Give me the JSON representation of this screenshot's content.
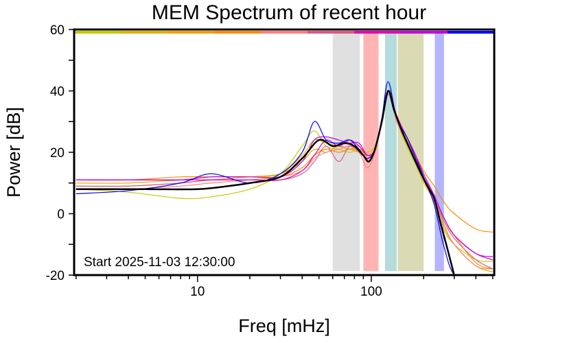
{
  "chart_data": {
    "type": "line",
    "title": "MEM Spectrum of recent hour",
    "xlabel": "Freq [mHz]",
    "ylabel": "Power [dB]",
    "x_scale": "log",
    "xlim": [
      1.95,
      510
    ],
    "ylim": [
      -20,
      60
    ],
    "x_ticks": [
      10,
      100
    ],
    "y_ticks": [
      -20,
      0,
      20,
      40,
      60
    ],
    "grid": false,
    "annotation": "Start 2025-11-03 12:30:00",
    "time_color_bar": [
      "#c8c800",
      "#dcb400",
      "#f0a000",
      "#ff8c00",
      "#ff7f7f",
      "#dc5a80",
      "#e600b4",
      "#c800dc",
      "#0000ff"
    ],
    "bands": [
      {
        "from": 60,
        "to": 86,
        "color": "#e0e0e0"
      },
      {
        "from": 90,
        "to": 110,
        "color": "#ffb4b4"
      },
      {
        "from": 120,
        "to": 140,
        "color": "#b4dcdc"
      },
      {
        "from": 142,
        "to": 200,
        "color": "#dadab4"
      },
      {
        "from": 232,
        "to": 262,
        "color": "#b4b4ff"
      }
    ],
    "series": [
      {
        "color": "#c8c800",
        "x": [
          2,
          4,
          8,
          12,
          20,
          30,
          40,
          47,
          55,
          65,
          75,
          85,
          95,
          105,
          115,
          125,
          140,
          160,
          180,
          200,
          230,
          260,
          300,
          400,
          500
        ],
        "y": [
          8,
          7,
          5,
          5.5,
          8,
          13,
          22,
          27,
          22,
          21,
          20,
          21,
          20,
          22,
          30,
          39,
          30,
          22,
          16,
          10,
          4,
          -5,
          -10,
          -15,
          -15.5
        ]
      },
      {
        "color": "#dcb400",
        "x": [
          2,
          4,
          8,
          12,
          20,
          30,
          40,
          47,
          55,
          65,
          75,
          85,
          95,
          105,
          115,
          125,
          140,
          160,
          180,
          200,
          230,
          260,
          300,
          400,
          500
        ],
        "y": [
          10,
          10,
          11,
          12,
          12,
          13,
          19,
          24,
          23,
          22,
          21,
          21,
          19,
          21,
          30,
          40,
          31,
          24,
          17,
          11,
          5,
          -3,
          -10,
          -17,
          -19
        ]
      },
      {
        "color": "#f0a000",
        "x": [
          2,
          4,
          8,
          12,
          20,
          30,
          40,
          47,
          55,
          65,
          75,
          85,
          95,
          105,
          115,
          125,
          140,
          160,
          180,
          200,
          230,
          260,
          300,
          400,
          500
        ],
        "y": [
          9,
          9,
          10,
          11,
          12,
          13,
          17,
          21,
          20,
          22,
          21,
          22,
          19,
          21,
          30,
          39,
          30,
          24,
          18,
          12,
          6,
          -1,
          -7,
          -16,
          -18
        ]
      },
      {
        "color": "#ff8c00",
        "x": [
          2,
          4,
          8,
          12,
          20,
          30,
          40,
          47,
          55,
          65,
          75,
          85,
          95,
          105,
          115,
          125,
          140,
          160,
          180,
          200,
          230,
          260,
          300,
          400,
          500
        ],
        "y": [
          11,
          11,
          12,
          12,
          12,
          12,
          15,
          19,
          21,
          20,
          21,
          20,
          19,
          21,
          30,
          39,
          31,
          25,
          19,
          14,
          9,
          4,
          0,
          -5,
          -6
        ]
      },
      {
        "color": "#ff7f7f",
        "x": [
          2,
          4,
          8,
          12,
          20,
          30,
          40,
          47,
          55,
          65,
          75,
          85,
          95,
          105,
          115,
          125,
          140,
          160,
          180,
          200,
          230,
          260,
          300,
          400,
          500
        ],
        "y": [
          8,
          8,
          9,
          10,
          11,
          12,
          14,
          18,
          20,
          21,
          22,
          20,
          15,
          20,
          30,
          39,
          30,
          23,
          17,
          11,
          4,
          -4,
          -10,
          -17,
          -18
        ]
      },
      {
        "color": "#dc5a80",
        "x": [
          2,
          4,
          8,
          12,
          20,
          30,
          40,
          47,
          55,
          65,
          75,
          85,
          95,
          105,
          115,
          125,
          140,
          160,
          180,
          200,
          230,
          260,
          300,
          400,
          500
        ],
        "y": [
          9,
          9,
          10,
          11,
          11,
          11,
          13,
          17,
          22,
          17,
          22,
          20,
          18,
          21,
          30,
          39,
          31,
          25,
          18,
          12,
          5,
          -2,
          -8,
          -15,
          -18
        ]
      },
      {
        "color": "#e600b4",
        "x": [
          2,
          4,
          8,
          12,
          20,
          30,
          40,
          47,
          55,
          65,
          75,
          85,
          95,
          105,
          115,
          125,
          140,
          160,
          180,
          200,
          230,
          260,
          300,
          400,
          500
        ],
        "y": [
          11,
          11,
          11,
          11,
          11,
          11,
          14,
          19,
          24,
          22,
          24,
          22,
          19,
          21,
          31,
          40,
          31,
          25,
          19,
          12,
          6,
          -1,
          -7,
          -13,
          -15
        ]
      },
      {
        "color": "#c800dc",
        "x": [
          2,
          4,
          8,
          12,
          20,
          30,
          40,
          47,
          55,
          65,
          75,
          85,
          95,
          105,
          115,
          125,
          140,
          160,
          180,
          200,
          230,
          260,
          300,
          400,
          500
        ],
        "y": [
          11,
          11,
          11,
          12,
          12,
          12,
          17,
          24,
          25,
          24,
          23,
          23,
          19,
          21,
          31,
          40,
          32,
          25,
          19,
          13,
          6,
          -1,
          -7,
          -13,
          -14
        ]
      },
      {
        "color": "#0000ff",
        "x": [
          2,
          4,
          8,
          12,
          20,
          30,
          40,
          47,
          55,
          65,
          75,
          85,
          95,
          105,
          115,
          125,
          140,
          160,
          180,
          200,
          230,
          260,
          300,
          400,
          500
        ],
        "y": [
          6.5,
          7.5,
          10,
          13,
          10,
          13,
          20,
          30,
          24,
          23,
          24,
          21,
          18,
          21,
          31,
          43,
          31,
          25,
          18,
          12,
          3,
          -10,
          -20,
          -25,
          -25
        ]
      },
      {
        "color": "#000000",
        "x": [
          2,
          5,
          10,
          15,
          20,
          30,
          40,
          50,
          60,
          70,
          80,
          90,
          97,
          105,
          115,
          125,
          135,
          150,
          170,
          190,
          210,
          230,
          250,
          270,
          300
        ],
        "y": [
          8,
          8,
          8,
          9,
          10,
          12,
          18,
          24,
          22,
          23,
          22,
          19,
          17,
          21,
          30,
          40,
          34,
          27,
          20,
          14,
          9,
          5,
          -3,
          -10,
          -20
        ]
      }
    ]
  }
}
